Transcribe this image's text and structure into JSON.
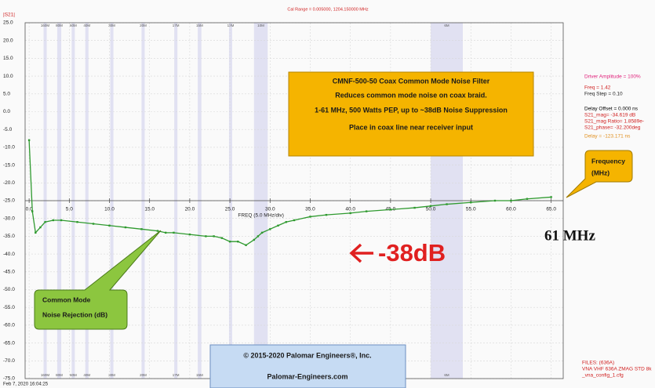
{
  "chart_data": {
    "type": "line",
    "title": "Cal Range = 0.005000,   1204.150000 MHz",
    "y_axis_label": "|S21|",
    "x_axis_label": "FREQ (5.0 MHz/div)",
    "color": "#2f9a2f",
    "xlim": [
      -0.5,
      66.5
    ],
    "ylim": [
      -75,
      25
    ],
    "xticks": [
      {
        "value": 0,
        "label": "0.0"
      },
      {
        "value": 5,
        "label": "5.0"
      },
      {
        "value": 10,
        "label": "10.0"
      },
      {
        "value": 15,
        "label": "15.0"
      },
      {
        "value": 20,
        "label": "20.0"
      },
      {
        "value": 25,
        "label": "25.0"
      },
      {
        "value": 30,
        "label": "30.0"
      },
      {
        "value": 35,
        "label": "35.0"
      },
      {
        "value": 40,
        "label": "40.0"
      },
      {
        "value": 45,
        "label": "45.0"
      },
      {
        "value": 50,
        "label": "50.0"
      },
      {
        "value": 55,
        "label": "55.0"
      },
      {
        "value": 60,
        "label": "60.0"
      },
      {
        "value": 65,
        "label": "65.0"
      }
    ],
    "yticks": [
      {
        "value": 25,
        "label": "25.0"
      },
      {
        "value": 20,
        "label": "20.0"
      },
      {
        "value": 15,
        "label": "15.0"
      },
      {
        "value": 10,
        "label": "10.0"
      },
      {
        "value": 5,
        "label": "5.0"
      },
      {
        "value": 0,
        "label": "0.0"
      },
      {
        "value": -5,
        "label": "-5.0"
      },
      {
        "value": -10,
        "label": "-10.0"
      },
      {
        "value": -15,
        "label": "-15.0"
      },
      {
        "value": -20,
        "label": "-20.0"
      },
      {
        "value": -25,
        "label": "-25.0"
      },
      {
        "value": -30,
        "label": "-30.0"
      },
      {
        "value": -35,
        "label": "-35.0"
      },
      {
        "value": -40,
        "label": "-40.0"
      },
      {
        "value": -45,
        "label": "-45.0"
      },
      {
        "value": -50,
        "label": "-50.0"
      },
      {
        "value": -55,
        "label": "-55.0"
      },
      {
        "value": -60,
        "label": "-60.0"
      },
      {
        "value": -65,
        "label": "-65.0"
      },
      {
        "value": -70,
        "label": "-70.0"
      },
      {
        "value": -75,
        "label": "-75.0"
      }
    ],
    "x": [
      0,
      0.4,
      0.8,
      1.4,
      2,
      3,
      4,
      6,
      8,
      10,
      12,
      14,
      16,
      17,
      18,
      20,
      22,
      23,
      24,
      25,
      26,
      27,
      28,
      28.5,
      29,
      30,
      31,
      32,
      33,
      35,
      37,
      40,
      42,
      45,
      48,
      50,
      52,
      55,
      58,
      60,
      62,
      65
    ],
    "values": [
      -8,
      -28,
      -34,
      -32.5,
      -31,
      -30.5,
      -30.5,
      -31,
      -31.5,
      -32,
      -32.5,
      -33,
      -33.5,
      -34,
      -34,
      -34.5,
      -35,
      -35,
      -35.5,
      -36.5,
      -36.5,
      -37.5,
      -36,
      -35,
      -34,
      -33,
      -32,
      -31,
      -30.5,
      -29.5,
      -29,
      -28.5,
      -28,
      -27.5,
      -27,
      -26.5,
      -26,
      -25.5,
      -25,
      -25,
      -24.5,
      -24
    ],
    "bands": [
      {
        "label": "160M",
        "start": 1.8,
        "end": 2.0
      },
      {
        "label": "80M",
        "start": 3.5,
        "end": 4.0
      },
      {
        "label": "60M",
        "start": 5.3,
        "end": 5.4
      },
      {
        "label": "40M",
        "start": 7.0,
        "end": 7.3
      },
      {
        "label": "30M",
        "start": 10.1,
        "end": 10.15
      },
      {
        "label": "20M",
        "start": 14.0,
        "end": 14.35
      },
      {
        "label": "17M",
        "start": 18.07,
        "end": 18.17
      },
      {
        "label": "15M",
        "start": 21.0,
        "end": 21.45
      },
      {
        "label": "12M",
        "start": 24.89,
        "end": 24.99
      },
      {
        "label": "10M",
        "start": 28.0,
        "end": 29.7
      },
      {
        "label": "6M",
        "start": 50.0,
        "end": 54.0
      }
    ]
  },
  "status_panel": [
    "Driver Amplitude = 100%",
    "Freq = 1.42",
    "Freq Step = 0.10",
    "Delay Offset = 0.000 ns",
    "S21_mag= -34.619 dB",
    "S21_mag Ratio= 1.8589e-",
    "S21_phase= -32.200deg",
    "Delay = -123.171 ns"
  ],
  "files": [
    "FILES: (636A)",
    "VNA VHF 636A ZMAG STD 8k",
    "_vna_config_1.cfg"
  ],
  "timestamp": "Feb 7, 2020  16:04:25",
  "info_box": [
    "CMNF-500-50 Coax Common Mode Noise Filter",
    "Reduces common mode noise on coax braid.",
    "1-61 MHz, 500 Watts PEP, up to ~38dB Noise Suppression",
    "Place in coax line near receiver input"
  ],
  "frequency_callout": [
    "Frequency",
    "(MHz)"
  ],
  "max_freq_label": "61 MHz",
  "suppression_label": "-38dB",
  "rejection_callout": [
    "Common Mode",
    "Noise Rejection (dB)"
  ],
  "copyright_box": [
    "© 2015-2020 Palomar Engineers®, Inc.",
    "Palomar-Engineers.com"
  ]
}
